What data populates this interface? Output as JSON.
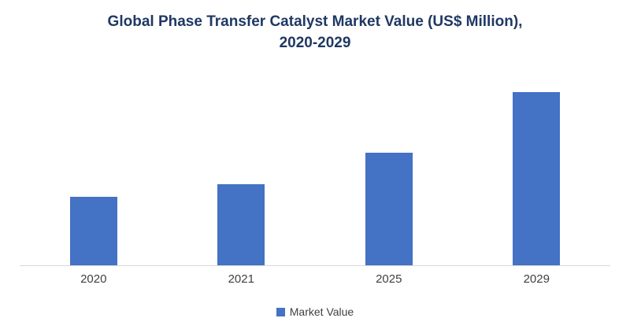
{
  "title": {
    "line1": "Global Phase Transfer Catalyst Market Value (US$ Million),",
    "line2": "2020-2029"
  },
  "legend": {
    "label": "Market Value"
  },
  "colors": {
    "bar": "#4472C4",
    "title_text": "#1F3864",
    "axis_line": "#d9d9d9"
  },
  "chart_data": {
    "type": "bar",
    "title": "Global Phase Transfer Catalyst Market Value (US$ Million), 2020-2029",
    "categories": [
      "2020",
      "2021",
      "2025",
      "2029"
    ],
    "series": [
      {
        "name": "Market Value",
        "values": [
          87,
          103,
          143,
          220
        ]
      }
    ],
    "xlabel": "",
    "ylabel": "",
    "ylim": [
      0,
      250
    ],
    "grid": false,
    "legend_position": "bottom",
    "value_note": "No y-axis shown in source; values estimated in relative units from bar heights"
  }
}
